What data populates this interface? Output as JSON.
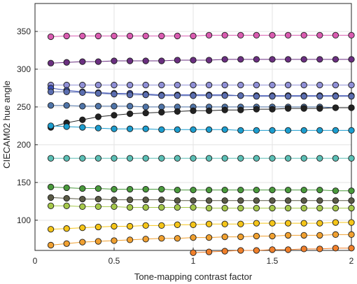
{
  "chart_data": {
    "type": "line",
    "xlabel": "Tone-mapping contrast factor",
    "ylabel": "CIECAM02 hue angle",
    "xlim": [
      0,
      2
    ],
    "ylim": [
      60,
      387
    ],
    "xticks": [
      0,
      0.5,
      1,
      1.5,
      2
    ],
    "xtick_labels": [
      "0",
      "0.5",
      "1",
      "1.5",
      "2"
    ],
    "yticks": [
      100,
      150,
      200,
      250,
      300,
      350
    ],
    "ytick_labels": [
      "100",
      "150",
      "200",
      "250",
      "300",
      "350"
    ],
    "grid": true,
    "x": [
      0.1,
      0.2,
      0.3,
      0.4,
      0.5,
      0.6,
      0.7,
      0.8,
      0.9,
      1.0,
      1.1,
      1.2,
      1.3,
      1.4,
      1.5,
      1.6,
      1.7,
      1.8,
      1.9,
      2.0
    ],
    "series": [
      {
        "color": "#d95bb0",
        "values": [
          343,
          344,
          344,
          344,
          344,
          344,
          344,
          344,
          344,
          344,
          345,
          345,
          345,
          345,
          345,
          345,
          345,
          345,
          345,
          345
        ]
      },
      {
        "color": "#6a2f80",
        "values": [
          308,
          309,
          310,
          310,
          311,
          311,
          311,
          311,
          312,
          312,
          312,
          313,
          313,
          313,
          313,
          313,
          313,
          313,
          313,
          313
        ]
      },
      {
        "color": "#8f8fd6",
        "values": [
          279,
          279,
          279,
          279,
          279,
          279,
          279,
          279,
          279,
          279,
          279,
          279,
          279,
          279,
          279,
          279,
          279,
          279,
          279,
          279
        ]
      },
      {
        "color": "#3b4fb5",
        "values": [
          275,
          272,
          270,
          269,
          268,
          268,
          267,
          266,
          266,
          266,
          266,
          266,
          265,
          265,
          265,
          265,
          265,
          265,
          265,
          265
        ]
      },
      {
        "color": "#5a6db0",
        "values": [
          270,
          270,
          269,
          268,
          267,
          266,
          266,
          265,
          265,
          265,
          265,
          265,
          265,
          264,
          264,
          264,
          264,
          264,
          264,
          264
        ]
      },
      {
        "color": "#4f74a8",
        "values": [
          252,
          252,
          251,
          251,
          251,
          251,
          250,
          250,
          250,
          250,
          250,
          250,
          250,
          250,
          250,
          250,
          250,
          250,
          249,
          249
        ]
      },
      {
        "color": "#222222",
        "values": [
          223,
          229,
          233,
          237,
          239,
          241,
          242,
          243,
          244,
          245,
          245,
          246,
          246,
          247,
          247,
          248,
          248,
          248,
          249,
          249
        ]
      },
      {
        "color": "#1b9dcf",
        "values": [
          225,
          224,
          223,
          222,
          221,
          221,
          221,
          220,
          220,
          220,
          220,
          220,
          219,
          219,
          219,
          219,
          219,
          219,
          219,
          219
        ]
      },
      {
        "color": "#5bbfb5",
        "values": [
          182,
          182,
          182,
          182,
          182,
          182,
          182,
          182,
          182,
          182,
          182,
          182,
          182,
          182,
          182,
          182,
          182,
          182,
          182,
          182
        ]
      },
      {
        "color": "#4a9a3c",
        "values": [
          144,
          143,
          142,
          142,
          141,
          141,
          141,
          141,
          140,
          140,
          140,
          140,
          140,
          140,
          140,
          140,
          140,
          140,
          139,
          139
        ]
      },
      {
        "color": "#5a5a46",
        "values": [
          130,
          129,
          128,
          128,
          127,
          127,
          127,
          127,
          126,
          126,
          126,
          126,
          126,
          126,
          126,
          126,
          126,
          126,
          126,
          126
        ]
      },
      {
        "color": "#a6c94a",
        "values": [
          119,
          119,
          118,
          118,
          118,
          117,
          117,
          117,
          117,
          117,
          116,
          116,
          116,
          116,
          116,
          116,
          116,
          116,
          116,
          116
        ]
      },
      {
        "color": "#f5c518",
        "values": [
          88,
          89,
          90,
          91,
          92,
          92,
          93,
          93,
          94,
          94,
          95,
          95,
          95,
          96,
          96,
          96,
          96,
          96,
          97,
          97
        ]
      },
      {
        "color": "#f0a030",
        "values": [
          67,
          69,
          71,
          72,
          73,
          74,
          75,
          76,
          76,
          77,
          77,
          78,
          78,
          79,
          79,
          80,
          80,
          80,
          81,
          81
        ]
      },
      {
        "color": "#f07f2a",
        "x": [
          1.0,
          1.1,
          1.2,
          1.3,
          1.4,
          1.5,
          1.6,
          1.7,
          1.8,
          1.9,
          2.0
        ],
        "values": [
          57,
          58,
          59,
          60,
          60,
          61,
          61,
          62,
          62,
          63,
          63
        ]
      }
    ]
  }
}
